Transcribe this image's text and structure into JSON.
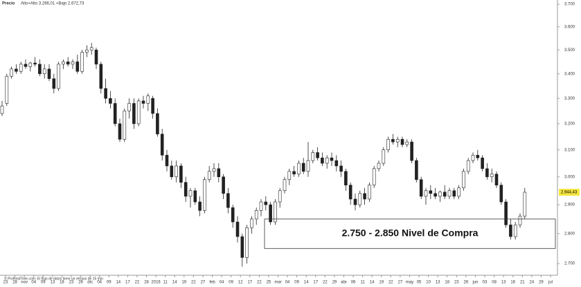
{
  "chart_data": {
    "type": "candlestick",
    "title": "Precio",
    "subtitle": "Alto+Alto 3.266,01 +Bajo 2.672,73",
    "footer": "© ProRealTime.com: El flujo de datos tiene un retraso de 15 min",
    "log_scale": true,
    "up_color": "#ffffff",
    "down_color": "#222222",
    "ylim": [
      2662,
      3719
    ],
    "yticks": [
      {
        "value": 2700,
        "label": "2.700"
      },
      {
        "value": 2800,
        "label": "2.800"
      },
      {
        "value": 2900,
        "label": "2.900"
      },
      {
        "value": 3000,
        "label": "3.000"
      },
      {
        "value": 3100,
        "label": "3.100"
      },
      {
        "value": 3200,
        "label": "3.200"
      },
      {
        "value": 3300,
        "label": "3.300"
      },
      {
        "value": 3400,
        "label": "3.400"
      },
      {
        "value": 3500,
        "label": "3.500"
      },
      {
        "value": 3600,
        "label": "3.600"
      },
      {
        "value": 3700,
        "label": "3.700"
      }
    ],
    "x_tick_labels": [
      "23",
      "28",
      "nov",
      "04",
      "09",
      "13",
      "18",
      "23",
      "26",
      "dic",
      "04",
      "09",
      "14",
      "17",
      "22",
      "28",
      "2016",
      "11",
      "14",
      "19",
      "22",
      "27",
      "feb",
      "04",
      "09",
      "12",
      "17",
      "22",
      "25",
      "mar",
      "04",
      "09",
      "14",
      "17",
      "22",
      "29",
      "abr",
      "06",
      "11",
      "14",
      "19",
      "22",
      "27",
      "may",
      "05",
      "10",
      "13",
      "18",
      "23",
      "26",
      "jun",
      "03",
      "08",
      "13",
      "16",
      "21",
      "24",
      "29",
      "jul"
    ],
    "ohlc": [
      [
        3240,
        3290,
        3230,
        3270
      ],
      [
        3280,
        3400,
        3270,
        3390
      ],
      [
        3390,
        3430,
        3380,
        3420
      ],
      [
        3420,
        3440,
        3400,
        3410
      ],
      [
        3410,
        3450,
        3400,
        3440
      ],
      [
        3440,
        3460,
        3420,
        3430
      ],
      [
        3430,
        3450,
        3410,
        3445
      ],
      [
        3445,
        3470,
        3430,
        3440
      ],
      [
        3440,
        3460,
        3390,
        3400
      ],
      [
        3400,
        3440,
        3380,
        3420
      ],
      [
        3420,
        3440,
        3370,
        3380
      ],
      [
        3380,
        3400,
        3320,
        3340
      ],
      [
        3340,
        3450,
        3330,
        3440
      ],
      [
        3440,
        3460,
        3420,
        3450
      ],
      [
        3450,
        3470,
        3430,
        3440
      ],
      [
        3440,
        3460,
        3420,
        3450
      ],
      [
        3450,
        3480,
        3400,
        3410
      ],
      [
        3410,
        3500,
        3400,
        3490
      ],
      [
        3490,
        3520,
        3470,
        3500
      ],
      [
        3500,
        3530,
        3480,
        3510
      ],
      [
        3500,
        3510,
        3420,
        3440
      ],
      [
        3440,
        3450,
        3320,
        3340
      ],
      [
        3340,
        3380,
        3280,
        3300
      ],
      [
        3300,
        3330,
        3260,
        3280
      ],
      [
        3280,
        3300,
        3190,
        3200
      ],
      [
        3200,
        3220,
        3130,
        3140
      ],
      [
        3140,
        3260,
        3130,
        3250
      ],
      [
        3250,
        3300,
        3220,
        3280
      ],
      [
        3280,
        3300,
        3180,
        3200
      ],
      [
        3200,
        3300,
        3190,
        3290
      ],
      [
        3290,
        3310,
        3260,
        3280
      ],
      [
        3280,
        3320,
        3250,
        3310
      ],
      [
        3300,
        3310,
        3220,
        3240
      ],
      [
        3240,
        3260,
        3150,
        3160
      ],
      [
        3160,
        3180,
        3060,
        3080
      ],
      [
        3080,
        3100,
        3020,
        3040
      ],
      [
        3040,
        3060,
        2990,
        3000
      ],
      [
        3000,
        3060,
        2980,
        3040
      ],
      [
        3040,
        3050,
        2960,
        2980
      ],
      [
        2980,
        3000,
        2910,
        2930
      ],
      [
        2930,
        2960,
        2890,
        2950
      ],
      [
        2950,
        2960,
        2900,
        2910
      ],
      [
        2910,
        2930,
        2860,
        2880
      ],
      [
        2880,
        3000,
        2870,
        2990
      ],
      [
        2990,
        3040,
        2980,
        3020
      ],
      [
        3020,
        3050,
        3000,
        3030
      ],
      [
        3030,
        3050,
        2980,
        3000
      ],
      [
        3000,
        3010,
        2920,
        2940
      ],
      [
        2940,
        2960,
        2870,
        2890
      ],
      [
        2890,
        2900,
        2820,
        2840
      ],
      [
        2840,
        2860,
        2770,
        2790
      ],
      [
        2790,
        2800,
        2690,
        2720
      ],
      [
        2720,
        2830,
        2700,
        2820
      ],
      [
        2820,
        2860,
        2800,
        2850
      ],
      [
        2850,
        2890,
        2830,
        2880
      ],
      [
        2880,
        2920,
        2860,
        2910
      ],
      [
        2910,
        2930,
        2880,
        2900
      ],
      [
        2900,
        2910,
        2830,
        2840
      ],
      [
        2840,
        2920,
        2830,
        2910
      ],
      [
        2910,
        2960,
        2890,
        2950
      ],
      [
        2950,
        3000,
        2940,
        2990
      ],
      [
        2990,
        3030,
        2970,
        3020
      ],
      [
        3020,
        3040,
        3000,
        3010
      ],
      [
        3010,
        3060,
        3000,
        3050
      ],
      [
        3050,
        3070,
        3010,
        3020
      ],
      [
        3020,
        3130,
        3000,
        3060
      ],
      [
        3060,
        3100,
        3050,
        3090
      ],
      [
        3090,
        3110,
        3060,
        3070
      ],
      [
        3070,
        3090,
        3040,
        3050
      ],
      [
        3050,
        3080,
        3030,
        3070
      ],
      [
        3070,
        3090,
        3040,
        3060
      ],
      [
        3060,
        3080,
        3020,
        3040
      ],
      [
        3040,
        3060,
        3000,
        3020
      ],
      [
        3020,
        3030,
        2950,
        2970
      ],
      [
        2970,
        2980,
        2900,
        2920
      ],
      [
        2920,
        2940,
        2880,
        2900
      ],
      [
        2900,
        2950,
        2890,
        2940
      ],
      [
        2940,
        2960,
        2900,
        2920
      ],
      [
        2920,
        2980,
        2910,
        2970
      ],
      [
        2970,
        3040,
        2960,
        3030
      ],
      [
        3030,
        3060,
        3020,
        3050
      ],
      [
        3050,
        3110,
        3040,
        3100
      ],
      [
        3100,
        3150,
        3090,
        3140
      ],
      [
        3140,
        3160,
        3120,
        3130
      ],
      [
        3130,
        3150,
        3110,
        3140
      ],
      [
        3140,
        3150,
        3110,
        3120
      ],
      [
        3120,
        3140,
        3110,
        3130
      ],
      [
        3130,
        3140,
        3050,
        3060
      ],
      [
        3060,
        3070,
        2980,
        2990
      ],
      [
        2990,
        3000,
        2920,
        2930
      ],
      [
        2930,
        2960,
        2900,
        2950
      ],
      [
        2950,
        2970,
        2920,
        2940
      ],
      [
        2940,
        2960,
        2920,
        2930
      ],
      [
        2930,
        2950,
        2910,
        2945
      ],
      [
        2945,
        2970,
        2920,
        2930
      ],
      [
        2930,
        2960,
        2920,
        2950
      ],
      [
        2950,
        2960,
        2920,
        2930
      ],
      [
        2930,
        2970,
        2920,
        2960
      ],
      [
        2960,
        3030,
        2950,
        3020
      ],
      [
        3020,
        3070,
        3010,
        3060
      ],
      [
        3060,
        3090,
        3050,
        3080
      ],
      [
        3080,
        3100,
        3060,
        3070
      ],
      [
        3070,
        3080,
        3020,
        3030
      ],
      [
        3030,
        3050,
        2990,
        3000
      ],
      [
        3000,
        3030,
        2980,
        3010
      ],
      [
        3010,
        3020,
        2960,
        2970
      ],
      [
        2970,
        2980,
        2900,
        2910
      ],
      [
        2910,
        2920,
        2820,
        2830
      ],
      [
        2830,
        2850,
        2780,
        2790
      ],
      [
        2790,
        2840,
        2780,
        2830
      ],
      [
        2830,
        2870,
        2820,
        2860
      ],
      [
        2860,
        2960,
        2850,
        2944.43
      ]
    ],
    "last_label": "2.944,43",
    "zone": {
      "low": 2750,
      "high": 2850,
      "label": "2.750 - 2.850 Nivel de Compra"
    }
  }
}
